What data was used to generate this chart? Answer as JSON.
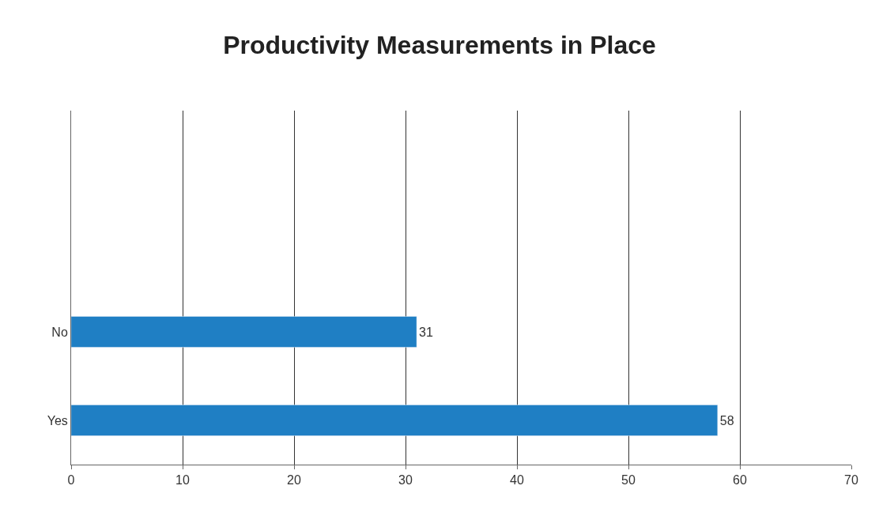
{
  "chart_data": {
    "type": "bar",
    "orientation": "horizontal",
    "title": "Productivity Measurements in Place",
    "categories": [
      null,
      null,
      "No",
      "Yes"
    ],
    "values": [
      null,
      null,
      31,
      58
    ],
    "color": "#1f7fc4",
    "xlim": [
      0,
      70
    ],
    "xticks": [
      0,
      10,
      20,
      30,
      40,
      50,
      60,
      70
    ],
    "grid": "x",
    "legend": false,
    "data_labels": true
  }
}
